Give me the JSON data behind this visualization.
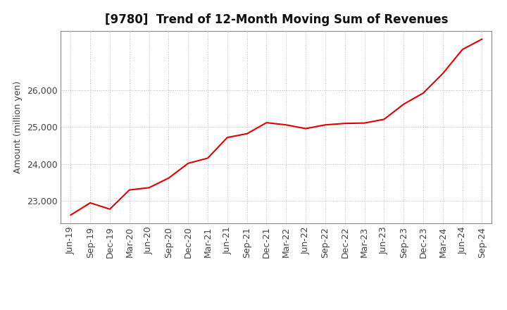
{
  "title": "[9780]  Trend of 12-Month Moving Sum of Revenues",
  "ylabel": "Amount (million yen)",
  "line_color": "#DD0000",
  "background_color": "#FFFFFF",
  "plot_bg_color": "#FFFFFF",
  "grid_color": "#BBBBBB",
  "x_labels": [
    "Jun-19",
    "Sep-19",
    "Dec-19",
    "Mar-20",
    "Jun-20",
    "Sep-20",
    "Dec-20",
    "Mar-21",
    "Jun-21",
    "Sep-21",
    "Dec-21",
    "Mar-22",
    "Jun-22",
    "Sep-22",
    "Dec-22",
    "Mar-23",
    "Jun-23",
    "Sep-23",
    "Dec-23",
    "Mar-24",
    "Jun-24",
    "Sep-24"
  ],
  "y_values": [
    22620,
    22950,
    22780,
    23300,
    23360,
    23620,
    24020,
    24160,
    24720,
    24820,
    25120,
    25060,
    24960,
    25060,
    25100,
    25110,
    25210,
    25620,
    25920,
    26450,
    27100,
    27380
  ],
  "ylim": [
    22400,
    27600
  ],
  "yticks": [
    23000,
    24000,
    25000,
    26000
  ],
  "title_fontsize": 12,
  "title_fontweight": "bold",
  "axis_label_fontsize": 9,
  "tick_fontsize": 9
}
